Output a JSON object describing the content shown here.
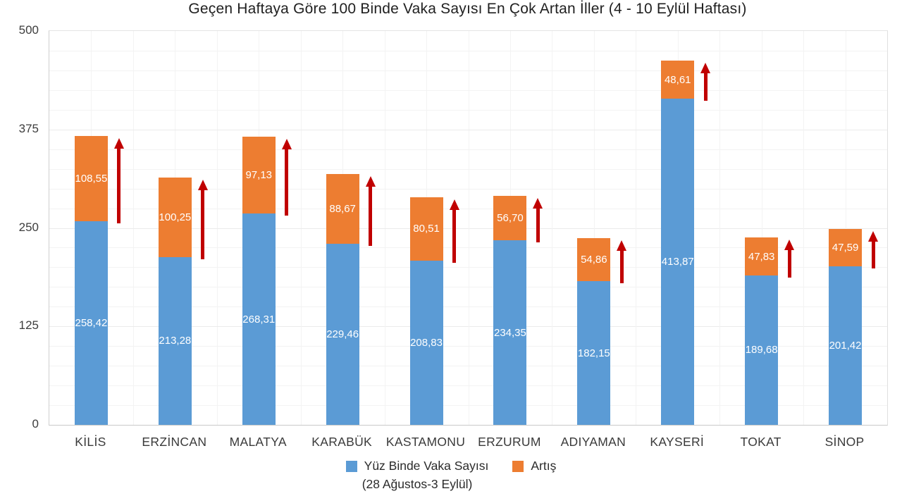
{
  "chart_data": {
    "type": "bar",
    "stacked": true,
    "title": "Geçen Haftaya Göre 100 Binde Vaka Sayısı En Çok Artan İller (4 - 10 Eylül Haftası)",
    "categories": [
      "KİLİS",
      "ERZİNCAN",
      "MALATYA",
      "KARABÜK",
      "KASTAMONU",
      "ERZURUM",
      "ADIYAMAN",
      "KAYSERİ",
      "TOKAT",
      "SİNOP"
    ],
    "series": [
      {
        "name": "Yüz Binde Vaka Sayısı",
        "color": "#5B9BD5",
        "values": [
          258.42,
          213.28,
          268.31,
          229.46,
          208.83,
          234.35,
          182.15,
          413.87,
          189.68,
          201.42
        ]
      },
      {
        "name": "Artış",
        "color": "#ED7D31",
        "values": [
          108.55,
          100.25,
          97.13,
          88.67,
          80.51,
          56.7,
          54.86,
          48.61,
          47.83,
          47.59
        ]
      }
    ],
    "legend_note": "(28 Ağustos-3 Eylül)",
    "xlabel": "",
    "ylabel": "",
    "ylim": [
      0,
      500
    ],
    "yticks": [
      0,
      125,
      250,
      375,
      500
    ],
    "grid": "on",
    "legend_position": "bottom",
    "label_format": "comma-decimal",
    "annotations": "red up-arrow beside each bar spanning the increase segment",
    "arrow_color": "#C00000"
  }
}
